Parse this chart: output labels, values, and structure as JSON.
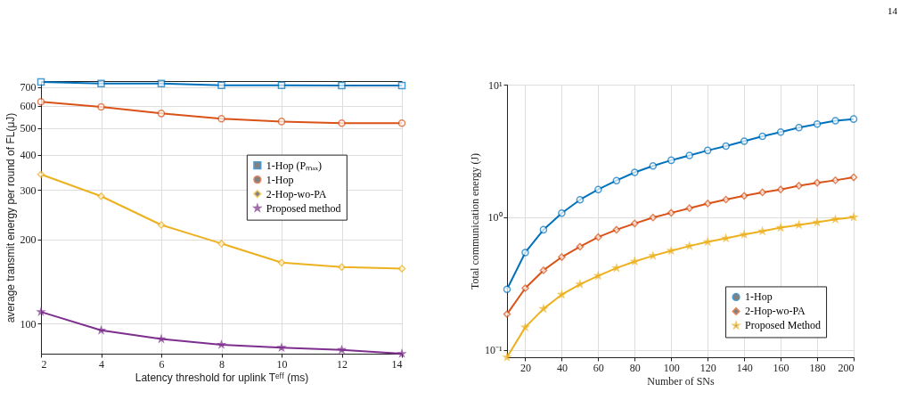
{
  "chart_data": [
    {
      "type": "line",
      "xlabel": "Latency threshold for uplink Tᵉᶠᶠ (ms)",
      "ylabel": "average transmit energy per round of FL(μJ)",
      "x": [
        2,
        4,
        6,
        8,
        10,
        12,
        14
      ],
      "xlim": [
        2,
        14
      ],
      "xticks": [
        2,
        4,
        6,
        8,
        10,
        12,
        14
      ],
      "ylim": [
        78,
        735
      ],
      "yticks": [
        100,
        200,
        300,
        400,
        500,
        600,
        700
      ],
      "log": "y",
      "grid": true,
      "legend": "right",
      "line_style": "solid",
      "series": [
        {
          "name": "1-Hop (Pₘₐₓ)",
          "color": "#0072bd",
          "marker": "square",
          "values": [
            730,
            720,
            720,
            710,
            710,
            709,
            709
          ]
        },
        {
          "name": "1-Hop",
          "color": "#d95319",
          "marker": "circle",
          "values": [
            620,
            594,
            563,
            539,
            527,
            520,
            520
          ]
        },
        {
          "name": "2-Hop-wo-PA",
          "color": "#edb120",
          "marker": "diamond",
          "values": [
            341,
            285,
            225,
            193,
            165,
            159,
            157
          ]
        },
        {
          "name": "Proposed method",
          "color": "#7e2f8e",
          "marker": "star",
          "values": [
            110,
            94.5,
            88,
            84,
            82,
            80.5,
            78
          ]
        }
      ]
    },
    {
      "type": "line",
      "xlabel": "Number of SNs",
      "ylabel": "Total communication energy (J)",
      "x": [
        10,
        20,
        30,
        40,
        50,
        60,
        70,
        80,
        90,
        100,
        110,
        120,
        130,
        140,
        150,
        160,
        170,
        180,
        190,
        200
      ],
      "xlim": [
        10,
        200
      ],
      "xticks": [
        20,
        40,
        60,
        80,
        100,
        120,
        140,
        160,
        180,
        200
      ],
      "ylim": [
        0.088,
        10
      ],
      "yticks": [
        {
          "value": 0.1,
          "label": "10⁻¹"
        },
        {
          "value": 1,
          "label": "10⁰"
        },
        {
          "value": 10,
          "label": "10¹"
        }
      ],
      "log": "y",
      "grid": true,
      "legend": "bottom right",
      "line_style": "solid",
      "annotations": [
        "14"
      ],
      "series": [
        {
          "name": "1-Hop",
          "color": "#0072bd",
          "marker": "circle",
          "values": [
            0.286,
            0.542,
            0.805,
            1.075,
            1.355,
            1.62,
            1.89,
            2.18,
            2.44,
            2.69,
            2.92,
            3.19,
            3.44,
            3.74,
            4.08,
            4.39,
            4.74,
            5.04,
            5.34,
            5.5
          ]
        },
        {
          "name": "2-Hop-wo-PA",
          "color": "#d95319",
          "marker": "diamond",
          "values": [
            0.186,
            0.292,
            0.398,
            0.501,
            0.6,
            0.708,
            0.805,
            0.898,
            0.995,
            1.08,
            1.17,
            1.27,
            1.36,
            1.45,
            1.54,
            1.62,
            1.73,
            1.82,
            1.9,
            2.0
          ]
        },
        {
          "name": "Proposed Method",
          "color": "#edb120",
          "marker": "star",
          "values": [
            0.088,
            0.148,
            0.204,
            0.261,
            0.312,
            0.362,
            0.414,
            0.464,
            0.512,
            0.559,
            0.607,
            0.652,
            0.694,
            0.741,
            0.785,
            0.835,
            0.875,
            0.916,
            0.965,
            1.0
          ]
        }
      ]
    }
  ]
}
